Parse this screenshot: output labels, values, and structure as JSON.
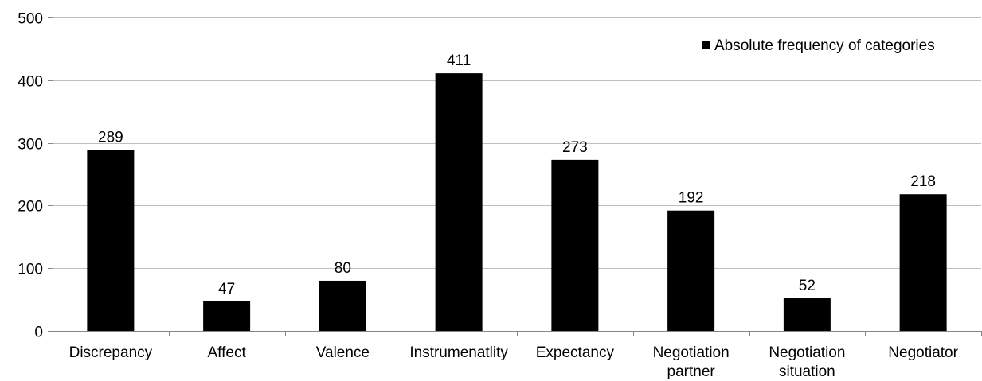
{
  "chart_data": {
    "type": "bar",
    "categories": [
      "Discrepancy",
      "Affect",
      "Valence",
      "Instrumenatlity",
      "Expectancy",
      "Negotiation partner",
      "Negotiation situation",
      "Negotiator"
    ],
    "category_lines": [
      [
        "Discrepancy"
      ],
      [
        "Affect"
      ],
      [
        "Valence"
      ],
      [
        "Instrumenatlity"
      ],
      [
        "Expectancy"
      ],
      [
        "Negotiation",
        "partner"
      ],
      [
        "Negotiation",
        "situation"
      ],
      [
        "Negotiator"
      ]
    ],
    "series": [
      {
        "name": "Absolute frequency of categories",
        "values": [
          289,
          47,
          80,
          411,
          273,
          192,
          52,
          218
        ]
      }
    ],
    "data_labels": [
      "289",
      "47",
      "80",
      "411",
      "273",
      "192",
      "52",
      "218"
    ],
    "ylim": [
      0,
      500
    ],
    "yticks": [
      0,
      100,
      200,
      300,
      400,
      500
    ],
    "ytick_labels": [
      "0",
      "100",
      "200",
      "300",
      "400",
      "500"
    ],
    "grid": true,
    "legend_position": "top-right",
    "colors": {
      "bar": "#000000",
      "grid": "#bfbfbf",
      "axis": "#868686"
    }
  }
}
